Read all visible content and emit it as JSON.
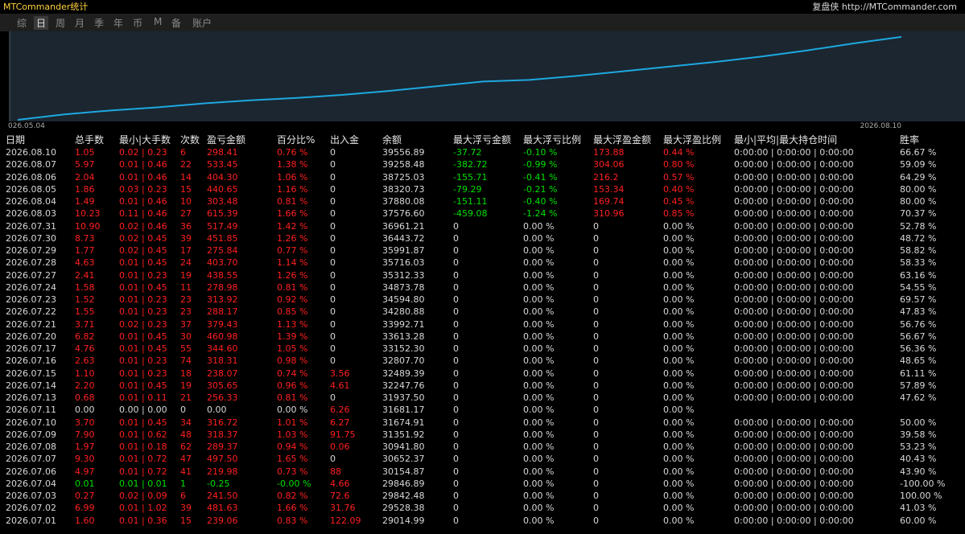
{
  "header": {
    "title": "MTCommander统计",
    "site": "复盘侠 http://MTCommander.com"
  },
  "tabs": [
    "综",
    "日",
    "周",
    "月",
    "季",
    "年",
    "币",
    "M",
    "备",
    "账户"
  ],
  "chart_data": {
    "type": "line",
    "x_start_label": "026.05.04",
    "x_end_label": "2026.08.10",
    "color": "#1ea8e0",
    "ylim": [
      0,
      110
    ],
    "values": [
      1,
      8,
      13,
      17,
      22,
      26,
      29,
      33,
      38,
      44,
      50,
      52,
      57,
      63,
      69,
      75,
      82,
      90,
      99,
      107
    ]
  },
  "table": {
    "columns": [
      "日期",
      "总手数",
      "最小|大手数",
      "次数",
      "盈亏金额",
      "百分比%",
      "出入金",
      "余额",
      "最大浮亏金额",
      "最大浮亏比例",
      "最大浮盈金额",
      "最大浮盈比例",
      "最小|平均|最大持仓时间",
      "胜率"
    ],
    "rows": [
      [
        "2026.08.10",
        "1.05",
        "0.02 | 0.23",
        "6",
        "298.41",
        "0.76 %",
        "0",
        "39556.89",
        "-37.72",
        "-0.10 %",
        "173.88",
        "0.44 %",
        "0:00:00 | 0:00:00 | 0:00:00",
        "66.67 %"
      ],
      [
        "2026.08.07",
        "5.97",
        "0.01 | 0.46",
        "22",
        "533.45",
        "1.38 %",
        "0",
        "39258.48",
        "-382.72",
        "-0.99 %",
        "304.06",
        "0.80 %",
        "0:00:00 | 0:00:00 | 0:00:00",
        "59.09 %"
      ],
      [
        "2026.08.06",
        "2.04",
        "0.01 | 0.46",
        "14",
        "404.30",
        "1.06 %",
        "0",
        "38725.03",
        "-155.71",
        "-0.41 %",
        "216.2",
        "0.57 %",
        "0:00:00 | 0:00:00 | 0:00:00",
        "64.29 %"
      ],
      [
        "2026.08.05",
        "1.86",
        "0.03 | 0.23",
        "15",
        "440.65",
        "1.16 %",
        "0",
        "38320.73",
        "-79.29",
        "-0.21 %",
        "153.34",
        "0.40 %",
        "0:00:00 | 0:00:00 | 0:00:00",
        "80.00 %"
      ],
      [
        "2026.08.04",
        "1.49",
        "0.01 | 0.46",
        "10",
        "303.48",
        "0.81 %",
        "0",
        "37880.08",
        "-151.11",
        "-0.40 %",
        "169.74",
        "0.45 %",
        "0:00:00 | 0:00:00 | 0:00:00",
        "80.00 %"
      ],
      [
        "2026.08.03",
        "10.23",
        "0.11 | 0.46",
        "27",
        "615.39",
        "1.66 %",
        "0",
        "37576.60",
        "-459.08",
        "-1.24 %",
        "310.96",
        "0.85 %",
        "0:00:00 | 0:00:00 | 0:00:00",
        "70.37 %"
      ],
      [
        "2026.07.31",
        "10.90",
        "0.02 | 0.46",
        "36",
        "517.49",
        "1.42 %",
        "0",
        "36961.21",
        "0",
        "0.00 %",
        "0",
        "0.00 %",
        "0:00:00 | 0:00:00 | 0:00:00",
        "52.78 %"
      ],
      [
        "2026.07.30",
        "8.73",
        "0.02 | 0.45",
        "39",
        "451.85",
        "1.26 %",
        "0",
        "36443.72",
        "0",
        "0.00 %",
        "0",
        "0.00 %",
        "0:00:00 | 0:00:00 | 0:00:00",
        "48.72 %"
      ],
      [
        "2026.07.29",
        "1.77",
        "0.02 | 0.45",
        "17",
        "275.84",
        "0.77 %",
        "0",
        "35991.87",
        "0",
        "0.00 %",
        "0",
        "0.00 %",
        "0:00:00 | 0:00:00 | 0:00:00",
        "58.82 %"
      ],
      [
        "2026.07.28",
        "4.63",
        "0.01 | 0.45",
        "24",
        "403.70",
        "1.14 %",
        "0",
        "35716.03",
        "0",
        "0.00 %",
        "0",
        "0.00 %",
        "0:00:00 | 0:00:00 | 0:00:00",
        "58.33 %"
      ],
      [
        "2026.07.27",
        "2.41",
        "0.01 | 0.23",
        "19",
        "438.55",
        "1.26 %",
        "0",
        "35312.33",
        "0",
        "0.00 %",
        "0",
        "0.00 %",
        "0:00:00 | 0:00:00 | 0:00:00",
        "63.16 %"
      ],
      [
        "2026.07.24",
        "1.58",
        "0.01 | 0.45",
        "11",
        "278.98",
        "0.81 %",
        "0",
        "34873.78",
        "0",
        "0.00 %",
        "0",
        "0.00 %",
        "0:00:00 | 0:00:00 | 0:00:00",
        "54.55 %"
      ],
      [
        "2026.07.23",
        "1.52",
        "0.01 | 0.23",
        "23",
        "313.92",
        "0.92 %",
        "0",
        "34594.80",
        "0",
        "0.00 %",
        "0",
        "0.00 %",
        "0:00:00 | 0:00:00 | 0:00:00",
        "69.57 %"
      ],
      [
        "2026.07.22",
        "1.55",
        "0.01 | 0.23",
        "23",
        "288.17",
        "0.85 %",
        "0",
        "34280.88",
        "0",
        "0.00 %",
        "0",
        "0.00 %",
        "0:00:00 | 0:00:00 | 0:00:00",
        "47.83 %"
      ],
      [
        "2026.07.21",
        "3.71",
        "0.02 | 0.23",
        "37",
        "379.43",
        "1.13 %",
        "0",
        "33992.71",
        "0",
        "0.00 %",
        "0",
        "0.00 %",
        "0:00:00 | 0:00:00 | 0:00:00",
        "56.76 %"
      ],
      [
        "2026.07.20",
        "6.82",
        "0.01 | 0.45",
        "30",
        "460.98",
        "1.39 %",
        "0",
        "33613.28",
        "0",
        "0.00 %",
        "0",
        "0.00 %",
        "0:00:00 | 0:00:00 | 0:00:00",
        "56.67 %"
      ],
      [
        "2026.07.17",
        "4.76",
        "0.01 | 0.45",
        "55",
        "344.60",
        "1.05 %",
        "0",
        "33152.30",
        "0",
        "0.00 %",
        "0",
        "0.00 %",
        "0:00:00 | 0:00:00 | 0:00:00",
        "56.36 %"
      ],
      [
        "2026.07.16",
        "2.63",
        "0.01 | 0.23",
        "74",
        "318.31",
        "0.98 %",
        "0",
        "32807.70",
        "0",
        "0.00 %",
        "0",
        "0.00 %",
        "0:00:00 | 0:00:00 | 0:00:00",
        "48.65 %"
      ],
      [
        "2026.07.15",
        "1.10",
        "0.01 | 0.23",
        "18",
        "238.07",
        "0.74 %",
        "3.56",
        "32489.39",
        "0",
        "0.00 %",
        "0",
        "0.00 %",
        "0:00:00 | 0:00:00 | 0:00:00",
        "61.11 %"
      ],
      [
        "2026.07.14",
        "2.20",
        "0.01 | 0.45",
        "19",
        "305.65",
        "0.96 %",
        "4.61",
        "32247.76",
        "0",
        "0.00 %",
        "0",
        "0.00 %",
        "0:00:00 | 0:00:00 | 0:00:00",
        "57.89 %"
      ],
      [
        "2026.07.13",
        "0.68",
        "0.01 | 0.11",
        "21",
        "256.33",
        "0.81 %",
        "0",
        "31937.50",
        "0",
        "0.00 %",
        "0",
        "0.00 %",
        "0:00:00 | 0:00:00 | 0:00:00",
        "47.62 %"
      ],
      [
        "2026.07.11",
        "0.00",
        "0.00 | 0.00",
        "0",
        "0.00",
        "0.00 %",
        "6.26",
        "31681.17",
        "0",
        "0.00 %",
        "0",
        "0.00 %"
      ],
      [
        "2026.07.10",
        "3.70",
        "0.01 | 0.45",
        "34",
        "316.72",
        "1.01 %",
        "6.27",
        "31674.91",
        "0",
        "0.00 %",
        "0",
        "0.00 %",
        "0:00:00 | 0:00:00 | 0:00:00",
        "50.00 %"
      ],
      [
        "2026.07.09",
        "7.90",
        "0.01 | 0.62",
        "48",
        "318.37",
        "1.03 %",
        "91.75",
        "31351.92",
        "0",
        "0.00 %",
        "0",
        "0.00 %",
        "0:00:00 | 0:00:00 | 0:00:00",
        "39.58 %"
      ],
      [
        "2026.07.08",
        "1.97",
        "0.01 | 0.18",
        "62",
        "289.37",
        "0.94 %",
        "0.06",
        "30941.80",
        "0",
        "0.00 %",
        "0",
        "0.00 %",
        "0:00:00 | 0:00:00 | 0:00:00",
        "53.23 %"
      ],
      [
        "2026.07.07",
        "9.30",
        "0.01 | 0.72",
        "47",
        "497.50",
        "1.65 %",
        "0",
        "30652.37",
        "0",
        "0.00 %",
        "0",
        "0.00 %",
        "0:00:00 | 0:00:00 | 0:00:00",
        "40.43 %"
      ],
      [
        "2026.07.06",
        "4.97",
        "0.01 | 0.72",
        "41",
        "219.98",
        "0.73 %",
        "88",
        "30154.87",
        "0",
        "0.00 %",
        "0",
        "0.00 %",
        "0:00:00 | 0:00:00 | 0:00:00",
        "43.90 %"
      ],
      [
        "2026.07.04",
        "0.01",
        "0.01 | 0.01",
        "1",
        "-0.25",
        "-0.00 %",
        "4.66",
        "29846.89",
        "0",
        "0.00 %",
        "0",
        "0.00 %",
        "0:00:00 | 0:00:00 | 0:00:00",
        "-100.00 %"
      ],
      [
        "2026.07.03",
        "0.27",
        "0.02 | 0.09",
        "6",
        "241.50",
        "0.82 %",
        "72.6",
        "29842.48",
        "0",
        "0.00 %",
        "0",
        "0.00 %",
        "0:00:00 | 0:00:00 | 0:00:00",
        "100.00 %"
      ],
      [
        "2026.07.02",
        "6.99",
        "0.01 | 1.02",
        "39",
        "481.63",
        "1.66 %",
        "31.76",
        "29528.38",
        "0",
        "0.00 %",
        "0",
        "0.00 %",
        "0:00:00 | 0:00:00 | 0:00:00",
        "41.03 %"
      ],
      [
        "2026.07.01",
        "1.60",
        "0.01 | 0.36",
        "15",
        "239.06",
        "0.83 %",
        "122.09",
        "29014.99",
        "0",
        "0.00 %",
        "0",
        "0.00 %",
        "0:00:00 | 0:00:00 | 0:00:00",
        "60.00 %"
      ]
    ]
  }
}
